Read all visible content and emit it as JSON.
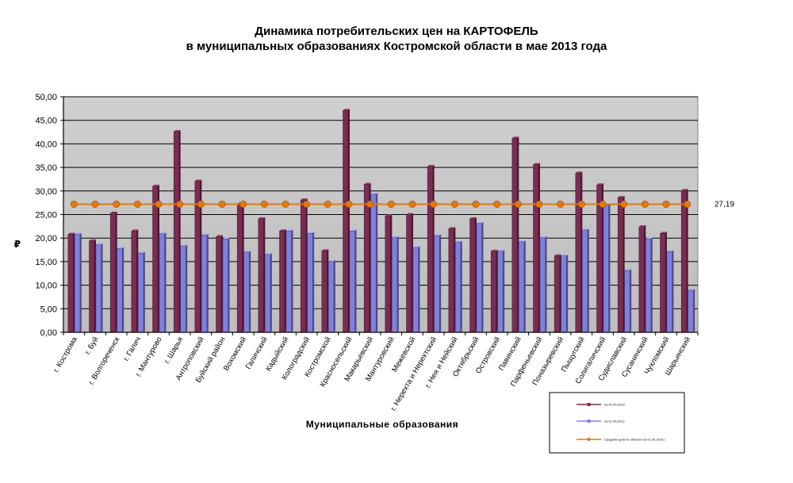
{
  "chart_data": {
    "type": "bar",
    "title_line1": "Динамика потребительских цен на КАРТОФЕЛЬ",
    "title_line2": "в муниципальных образованиях Костромской области в мае 2013 года",
    "xlabel": "Муниципальные образования",
    "ylabel": "₽",
    "ylim": [
      0,
      50
    ],
    "yticks": [
      "0,00",
      "5,00",
      "10,00",
      "15,00",
      "20,00",
      "25,00",
      "30,00",
      "35,00",
      "40,00",
      "45,00",
      "50,00"
    ],
    "grid": true,
    "legend_position": "bottom-right",
    "categories": [
      "г. Кострома",
      "г. Буй",
      "г. Волгореченск",
      "г. Галич",
      "г. Мантурово",
      "г. Шарья",
      "Антроповский",
      "Буйский район",
      "Вохомский",
      "Галичский",
      "Кадыйский",
      "Колоградский",
      "Костромской",
      "Красносельский",
      "Макарьевский",
      "Мантуровский",
      "Межевской",
      "г. Нерехта и Нерехтский",
      "г. Нея и Нейский",
      "Октябрьский",
      "Островский",
      "Павинский",
      "Парфеньевский",
      "Поназыревский",
      "Пыщугский",
      "Солигаличский",
      "Судиславский",
      "Сусанинский",
      "Чухломский",
      "Шарьинский"
    ],
    "series": [
      {
        "name": "на 01.05.2013",
        "color": "#7b2c52",
        "values": [
          20.8,
          19.4,
          25.3,
          21.5,
          31.0,
          42.6,
          32.1,
          20.3,
          27.2,
          24.1,
          21.5,
          28.1,
          17.3,
          47.1,
          31.4,
          24.7,
          25.0,
          35.2,
          22.0,
          24.1,
          17.2,
          41.2,
          35.6,
          16.2,
          33.8,
          31.3,
          28.6,
          22.4,
          21.0,
          30.1
        ]
      },
      {
        "name": "на 01.05.2012",
        "color": "#8080e0",
        "values": [
          20.8,
          18.6,
          17.8,
          16.8,
          20.9,
          18.3,
          20.6,
          19.8,
          17.0,
          16.5,
          21.5,
          21.0,
          15.0,
          21.5,
          29.3,
          20.1,
          18.0,
          20.5,
          19.1,
          23.1,
          17.2,
          19.2,
          20.1,
          16.2,
          21.7,
          27.0,
          13.1,
          19.8,
          17.1,
          8.9
        ]
      }
    ],
    "average": {
      "name": "Средняя цена по области на 01.05.2013 г.",
      "value": 27.19,
      "label": "27,19",
      "color": "#e07a10"
    }
  }
}
